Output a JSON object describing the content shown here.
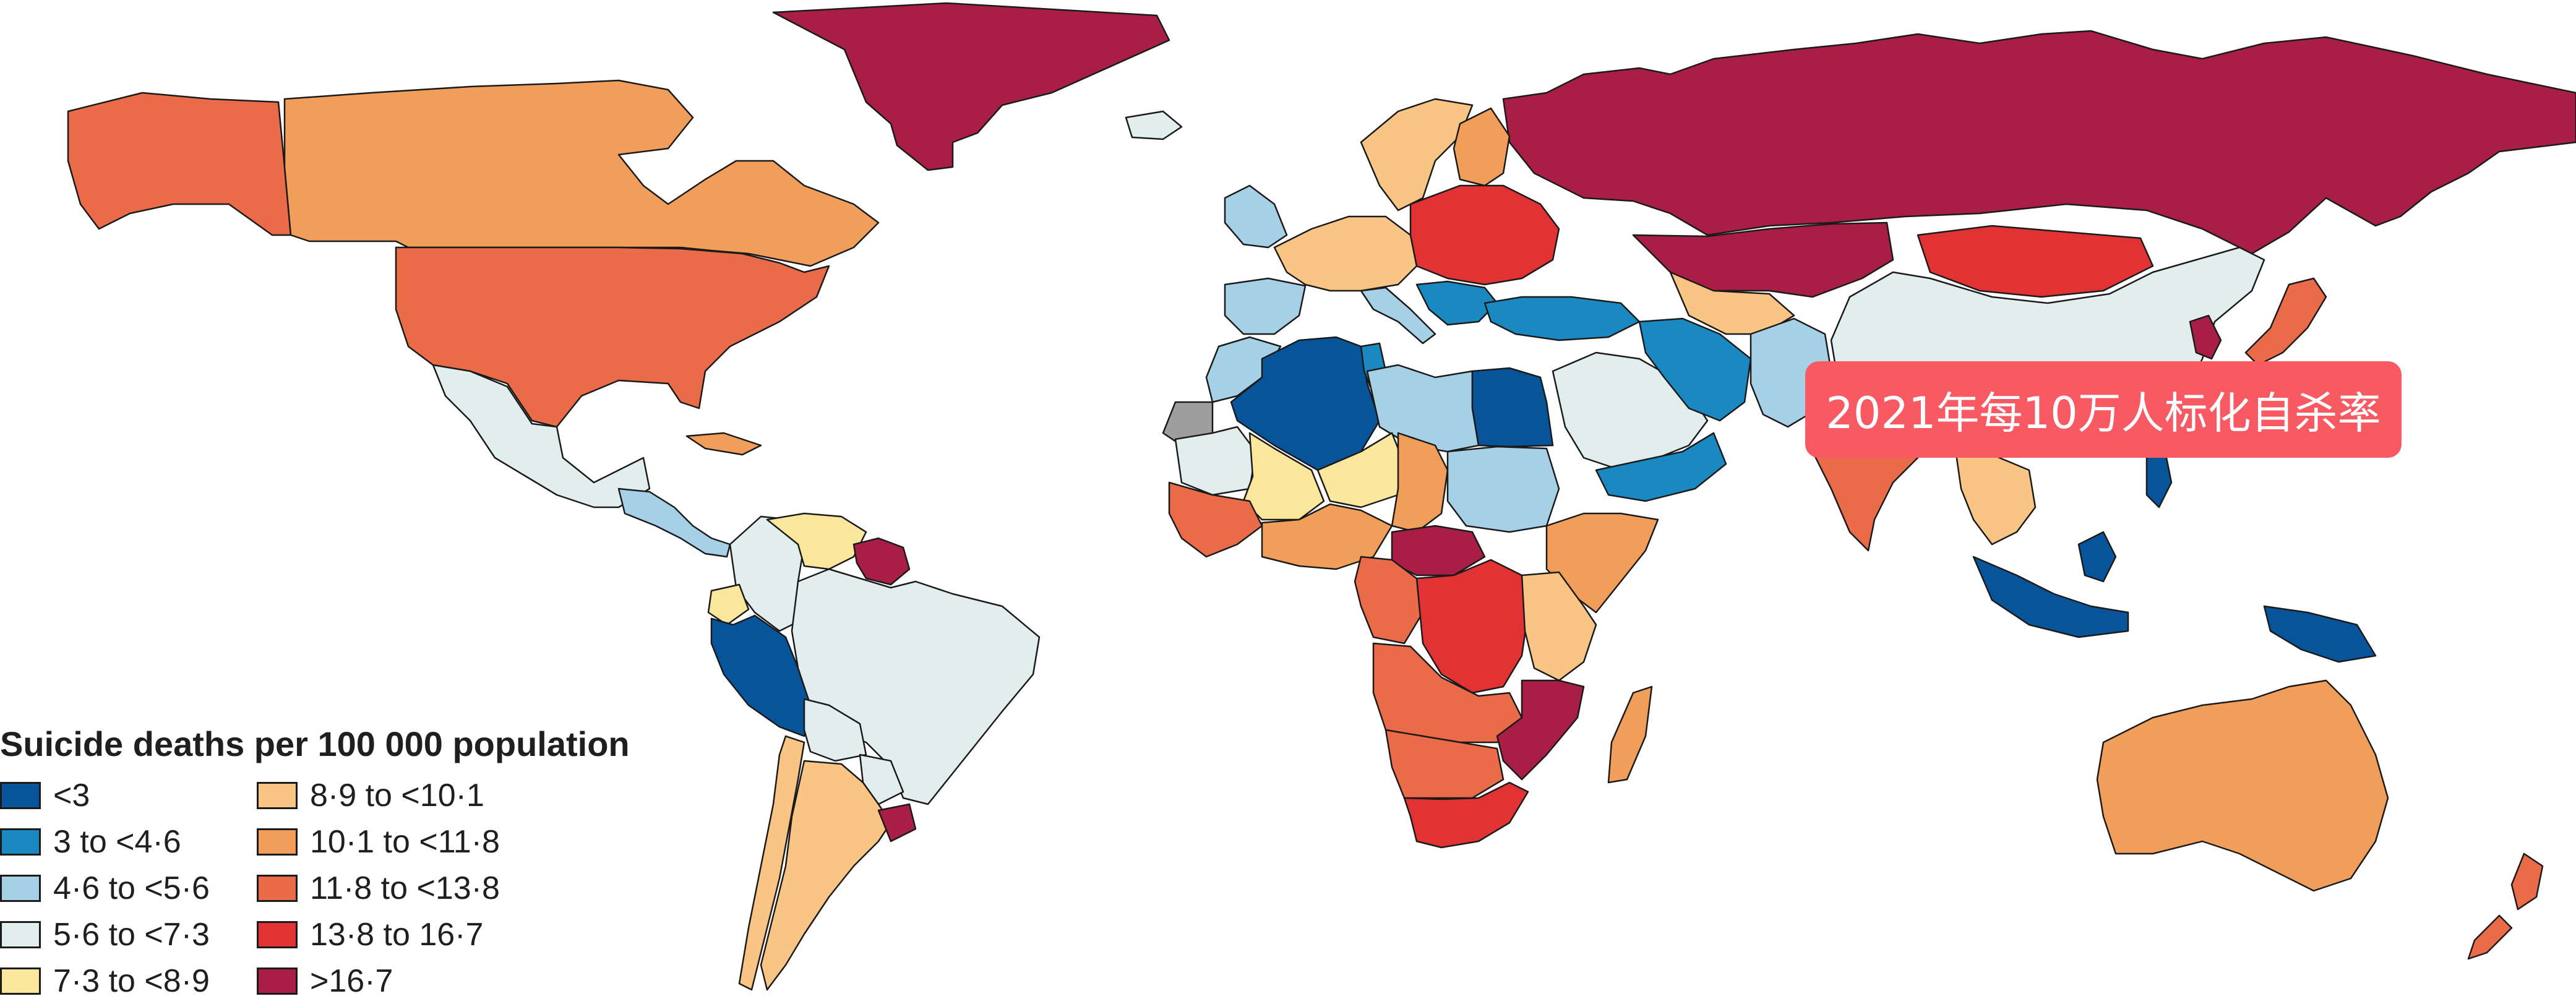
{
  "overlay_label": "2021年每10万人标化自杀率",
  "legend": {
    "title": "Suicide deaths per 100 000 population",
    "items": [
      {
        "label": "<3",
        "color": "#07549b"
      },
      {
        "label": "3 to <4·6",
        "color": "#1b89c1"
      },
      {
        "label": "4·6 to <5·6",
        "color": "#a6d0e6"
      },
      {
        "label": "5·6 to <7·3",
        "color": "#e2eeee"
      },
      {
        "label": "7·3 to <8·9",
        "color": "#fbe79c"
      },
      {
        "label": "8·9 to <10·1",
        "color": "#f9c584"
      },
      {
        "label": "10·1 to <11·8",
        "color": "#f29e5b"
      },
      {
        "label": "11·8 to <13·8",
        "color": "#ea6b48"
      },
      {
        "label": "13·8 to 16·7",
        "color": "#e23334"
      },
      {
        "label": ">16·7",
        "color": "#a91e44"
      }
    ],
    "no_data_color": "#9e9e9e"
  },
  "regions": [
    {
      "name": "greenland",
      "bin": 9
    },
    {
      "name": "russia",
      "bin": 9
    },
    {
      "name": "kazakhstan",
      "bin": 9
    },
    {
      "name": "mongolia",
      "bin": 8
    },
    {
      "name": "china",
      "bin": 3
    },
    {
      "name": "alaska",
      "bin": 7
    },
    {
      "name": "canada",
      "bin": 6
    },
    {
      "name": "usa",
      "bin": 7
    },
    {
      "name": "mexico",
      "bin": 3
    },
    {
      "name": "central-america",
      "bin": 2
    },
    {
      "name": "caribbean",
      "bin": 6
    },
    {
      "name": "colombia",
      "bin": 3
    },
    {
      "name": "venezuela",
      "bin": 4
    },
    {
      "name": "guianas",
      "bin": 9
    },
    {
      "name": "ecuador",
      "bin": 4
    },
    {
      "name": "peru",
      "bin": 0
    },
    {
      "name": "brazil",
      "bin": 3
    },
    {
      "name": "bolivia",
      "bin": 3
    },
    {
      "name": "paraguay",
      "bin": 3
    },
    {
      "name": "argentina",
      "bin": 5
    },
    {
      "name": "chile",
      "bin": 5
    },
    {
      "name": "uruguay",
      "bin": 9
    },
    {
      "name": "iceland",
      "bin": 3
    },
    {
      "name": "uk-ireland",
      "bin": 2
    },
    {
      "name": "scandinavia",
      "bin": 5
    },
    {
      "name": "finland",
      "bin": 6
    },
    {
      "name": "western-europe",
      "bin": 5
    },
    {
      "name": "iberia",
      "bin": 2
    },
    {
      "name": "italy",
      "bin": 2
    },
    {
      "name": "eastern-europe",
      "bin": 8
    },
    {
      "name": "balkans",
      "bin": 1
    },
    {
      "name": "turkey",
      "bin": 1
    },
    {
      "name": "morocco",
      "bin": 2
    },
    {
      "name": "western-sahara",
      "bin": 10
    },
    {
      "name": "algeria",
      "bin": 0
    },
    {
      "name": "tunisia",
      "bin": 1
    },
    {
      "name": "libya",
      "bin": 2
    },
    {
      "name": "egypt",
      "bin": 0
    },
    {
      "name": "mauritania",
      "bin": 3
    },
    {
      "name": "mali",
      "bin": 4
    },
    {
      "name": "niger",
      "bin": 4
    },
    {
      "name": "chad",
      "bin": 6
    },
    {
      "name": "sudan",
      "bin": 2
    },
    {
      "name": "west-africa",
      "bin": 7
    },
    {
      "name": "gulf-of-guinea",
      "bin": 6
    },
    {
      "name": "ethiopia-horn",
      "bin": 6
    },
    {
      "name": "central-african-rep",
      "bin": 9
    },
    {
      "name": "cameroon-gabon",
      "bin": 7
    },
    {
      "name": "drc",
      "bin": 8
    },
    {
      "name": "east-africa",
      "bin": 5
    },
    {
      "name": "angola-zambia",
      "bin": 7
    },
    {
      "name": "mozambique-zimbabwe",
      "bin": 9
    },
    {
      "name": "namibia-botswana",
      "bin": 7
    },
    {
      "name": "south-africa",
      "bin": 8
    },
    {
      "name": "madagascar",
      "bin": 6
    },
    {
      "name": "arabian-peninsula",
      "bin": 3
    },
    {
      "name": "oman-yemen",
      "bin": 1
    },
    {
      "name": "iran",
      "bin": 1
    },
    {
      "name": "central-asia",
      "bin": 5
    },
    {
      "name": "afghanistan-pakistan",
      "bin": 2
    },
    {
      "name": "india",
      "bin": 7
    },
    {
      "name": "southeast-asia",
      "bin": 5
    },
    {
      "name": "indonesia-philippines",
      "bin": 0
    },
    {
      "name": "png",
      "bin": 0
    },
    {
      "name": "japan",
      "bin": 7
    },
    {
      "name": "korea",
      "bin": 9
    },
    {
      "name": "australia",
      "bin": 6
    },
    {
      "name": "new-zealand",
      "bin": 7
    }
  ]
}
